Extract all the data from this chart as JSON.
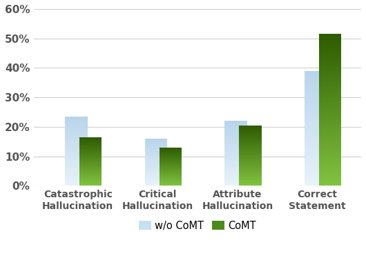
{
  "categories": [
    "Catastrophic\nHallucination",
    "Critical\nHallucination",
    "Attribute\nHallucination",
    "Correct\nStatement"
  ],
  "wo_comt": [
    23.5,
    16.0,
    22.0,
    39.0
  ],
  "comt": [
    16.5,
    13.0,
    20.5,
    51.5
  ],
  "ylim": [
    0,
    60
  ],
  "yticks": [
    0,
    10,
    20,
    30,
    40,
    50,
    60
  ],
  "ytick_labels": [
    "0%",
    "10%",
    "20%",
    "30%",
    "40%",
    "50%",
    "60%"
  ],
  "bar_width": 0.28,
  "bar_gap": 0.04,
  "wo_comt_color_top": "#b8d4ea",
  "wo_comt_color_bottom": "#e8f2f9",
  "comt_color_top": "#2d5a00",
  "comt_color_bottom": "#82c341",
  "legend_wo_comt": "w/o CoMT",
  "legend_comt": "CoMT",
  "background_color": "#ffffff",
  "grid_color": "#d0d0d0"
}
